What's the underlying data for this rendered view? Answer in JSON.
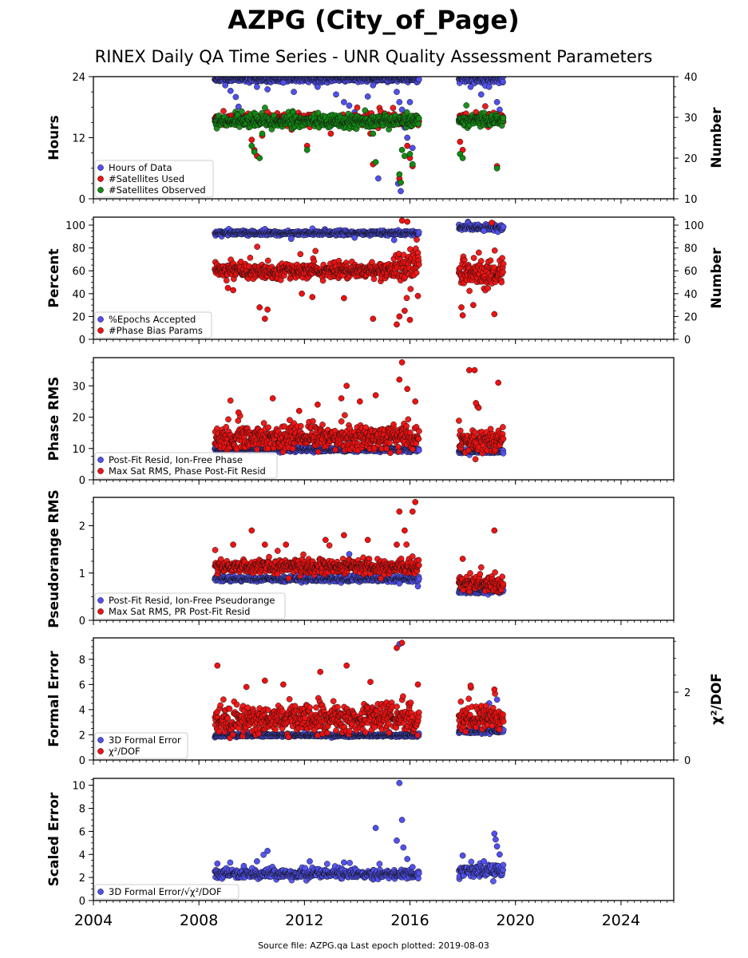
{
  "figure": {
    "title": "AZPG (City_of_Page)",
    "subtitle": "RINEX Daily QA Time Series - UNR Quality Assessment Parameters",
    "footer": "Source file: AZPG.qa Last epoch plotted: 2019-08-03"
  },
  "colors": {
    "blue": "#5050f0",
    "red": "#ee1111",
    "green": "#138a13",
    "axis": "#000000"
  },
  "chart_data": [
    {
      "type": "scatter",
      "name": "hours",
      "ylabel": "Hours",
      "ylabel_right": "Number",
      "ylim": [
        0,
        24
      ],
      "ylim_right": [
        10,
        40
      ],
      "yticks": [
        0,
        12,
        24
      ],
      "yticks_right": [
        10,
        20,
        30,
        40
      ],
      "xlim": [
        2004,
        2026
      ],
      "series": [
        {
          "name": "Hours of Data",
          "color": "#5050f0",
          "axis": "left",
          "segments": [
            [
              2008.6,
              2016.35,
              23.5,
              0.4
            ],
            [
              2017.85,
              2019.55,
              23.5,
              0.6
            ]
          ],
          "outliers": [
            [
              2009.0,
              22.3
            ],
            [
              2009.2,
              21.2
            ],
            [
              2009.4,
              20.0
            ],
            [
              2009.5,
              18.1
            ],
            [
              2010.2,
              22.0
            ],
            [
              2010.6,
              21.5
            ],
            [
              2011.2,
              22.8
            ],
            [
              2011.6,
              21.0
            ],
            [
              2012.5,
              22.0
            ],
            [
              2013.2,
              20.5
            ],
            [
              2013.5,
              19.0
            ],
            [
              2013.7,
              18.3
            ],
            [
              2013.9,
              17.0
            ],
            [
              2014.4,
              20.1
            ],
            [
              2014.6,
              22.3
            ],
            [
              2014.8,
              4.0
            ],
            [
              2015.5,
              21.0
            ],
            [
              2015.6,
              19.0
            ],
            [
              2015.7,
              17.5
            ],
            [
              2015.8,
              14.0
            ],
            [
              2015.9,
              12.0
            ],
            [
              2016.0,
              19.0
            ],
            [
              2016.1,
              10.0
            ],
            [
              2015.65,
              1.5
            ],
            [
              2015.55,
              3.0
            ],
            [
              2018.3,
              22.0
            ],
            [
              2018.7,
              20.5
            ],
            [
              2019.0,
              22.0
            ],
            [
              2019.3,
              19.0
            ],
            [
              2019.4,
              17.5
            ]
          ]
        },
        {
          "name": "#Satellites Used",
          "color": "#ee1111",
          "axis": "right",
          "segments": [
            [
              2008.6,
              2016.35,
              29.3,
              1.0
            ],
            [
              2017.85,
              2019.55,
              29.5,
              1.0
            ]
          ],
          "outliers": [
            [
              2010.0,
              24.5
            ],
            [
              2010.1,
              22.0
            ],
            [
              2010.2,
              20.5
            ],
            [
              2012.1,
              23.0
            ],
            [
              2013.0,
              26.0
            ],
            [
              2014.5,
              26.0
            ],
            [
              2014.6,
              18.5
            ],
            [
              2015.6,
              15.0
            ],
            [
              2015.65,
              14.0
            ],
            [
              2015.9,
              23.0
            ],
            [
              2016.1,
              18.0
            ],
            [
              2016.0,
              20.0
            ],
            [
              2017.9,
              24.0
            ],
            [
              2018.0,
              22.0
            ],
            [
              2019.3,
              18.0
            ],
            [
              2010.4,
              25.5
            ]
          ]
        },
        {
          "name": "#Satellites Observed",
          "color": "#138a13",
          "axis": "right",
          "segments": [
            [
              2008.6,
              2016.35,
              29.0,
              1.1
            ],
            [
              2017.85,
              2019.55,
              29.2,
              1.0
            ]
          ],
          "outliers": [
            [
              2010.0,
              23.0
            ],
            [
              2010.1,
              21.5
            ],
            [
              2010.3,
              20.0
            ],
            [
              2012.1,
              22.0
            ],
            [
              2014.6,
              26.0
            ],
            [
              2014.7,
              19.0
            ],
            [
              2015.6,
              16.0
            ],
            [
              2015.65,
              14.0
            ],
            [
              2015.7,
              22.0
            ],
            [
              2015.8,
              20.5
            ],
            [
              2016.0,
              21.0
            ],
            [
              2016.1,
              18.5
            ],
            [
              2017.9,
              21.0
            ],
            [
              2018.0,
              20.0
            ],
            [
              2019.3,
              17.5
            ],
            [
              2010.4,
              26.0
            ]
          ]
        }
      ]
    },
    {
      "type": "scatter",
      "name": "percent",
      "ylabel": "Percent",
      "ylabel_right": "Number",
      "ylim": [
        0,
        107
      ],
      "ylim_right": [
        0,
        107
      ],
      "yticks": [
        0,
        20,
        40,
        60,
        80,
        100
      ],
      "yticks_right": [
        0,
        20,
        40,
        60,
        80,
        100
      ],
      "xlim": [
        2004,
        2026
      ],
      "series": [
        {
          "name": "%Epochs Accepted",
          "color": "#5050f0",
          "axis": "left",
          "segments": [
            [
              2008.6,
              2016.35,
              93.0,
              1.5
            ],
            [
              2017.85,
              2019.55,
              97.5,
              2.0
            ]
          ],
          "outliers": [
            [
              2011.5,
              88.0
            ],
            [
              2013.9,
              89.0
            ],
            [
              2015.4,
              87.0
            ],
            [
              2018.8,
              95.0
            ]
          ]
        },
        {
          "name": "#Phase Bias Params",
          "color": "#ee1111",
          "axis": "right",
          "segments": [
            [
              2008.6,
              2015.4,
              60.0,
              5.5
            ],
            [
              2015.4,
              2016.35,
              65.0,
              14.0
            ],
            [
              2017.85,
              2019.55,
              58.0,
              9.0
            ]
          ],
          "outliers": [
            [
              2009.1,
              45.0
            ],
            [
              2009.3,
              43.0
            ],
            [
              2010.3,
              28.0
            ],
            [
              2010.5,
              18.0
            ],
            [
              2010.6,
              26.0
            ],
            [
              2011.9,
              40.0
            ],
            [
              2012.3,
              37.0
            ],
            [
              2013.5,
              36.0
            ],
            [
              2014.6,
              18.0
            ],
            [
              2015.5,
              13.0
            ],
            [
              2015.6,
              20.0
            ],
            [
              2015.8,
              25.0
            ],
            [
              2016.0,
              17.0
            ],
            [
              2016.3,
              38.0
            ],
            [
              2017.95,
              28.0
            ],
            [
              2018.0,
              21.0
            ],
            [
              2018.4,
              30.0
            ],
            [
              2019.2,
              22.0
            ],
            [
              2015.7,
              104.0
            ],
            [
              2015.9,
              103.0
            ],
            [
              2019.1,
              102.0
            ]
          ]
        }
      ]
    },
    {
      "type": "scatter",
      "name": "phase-rms",
      "ylabel": "Phase RMS",
      "ylim": [
        0,
        39
      ],
      "yticks": [
        0,
        10,
        20,
        30
      ],
      "xlim": [
        2004,
        2026
      ],
      "series": [
        {
          "name": "Post-Fit Resid, Ion-Free Phase",
          "color": "#5050f0",
          "axis": "left",
          "segments": [
            [
              2008.6,
              2016.35,
              9.6,
              0.5
            ],
            [
              2017.85,
              2019.55,
              9.0,
              0.5
            ]
          ],
          "outliers": []
        },
        {
          "name": "Max Sat RMS, Phase Post-Fit Resid",
          "color": "#ee1111",
          "axis": "left",
          "segments": [
            [
              2008.6,
              2016.35,
              13.5,
              3.0
            ],
            [
              2017.85,
              2019.55,
              12.5,
              2.8
            ]
          ],
          "outliers": [
            [
              2010.8,
              26.0
            ],
            [
              2012.5,
              24.0
            ],
            [
              2013.4,
              26.0
            ],
            [
              2013.6,
              30.0
            ],
            [
              2014.1,
              25.0
            ],
            [
              2014.7,
              27.0
            ],
            [
              2015.6,
              32.0
            ],
            [
              2015.7,
              37.5
            ],
            [
              2015.9,
              29.0
            ],
            [
              2016.2,
              25.0
            ],
            [
              2018.25,
              35.0
            ],
            [
              2018.45,
              35.0
            ],
            [
              2018.5,
              24.5
            ],
            [
              2018.6,
              23.0
            ],
            [
              2019.35,
              31.0
            ],
            [
              2011.8,
              22.0
            ],
            [
              2009.5,
              21.5
            ]
          ]
        }
      ]
    },
    {
      "type": "scatter",
      "name": "pseudorange-rms",
      "ylabel": "Pseudorange RMS",
      "ylim": [
        0,
        2.6
      ],
      "yticks": [
        0,
        1,
        2
      ],
      "xlim": [
        2004,
        2026
      ],
      "series": [
        {
          "name": "Post-Fit Resid, Ion-Free Pseudorange",
          "color": "#5050f0",
          "axis": "left",
          "segments": [
            [
              2008.6,
              2016.35,
              0.87,
              0.04
            ],
            [
              2017.85,
              2019.55,
              0.62,
              0.04
            ]
          ],
          "outliers": [
            [
              2013.7,
              1.4
            ],
            [
              2015.6,
              0.78
            ],
            [
              2016.3,
              0.72
            ]
          ]
        },
        {
          "name": "Max Sat RMS, PR Post-Fit Resid",
          "color": "#ee1111",
          "axis": "left",
          "segments": [
            [
              2008.6,
              2016.35,
              1.13,
              0.12
            ],
            [
              2017.85,
              2019.55,
              0.78,
              0.12
            ]
          ],
          "outliers": [
            [
              2009.3,
              1.6
            ],
            [
              2010.0,
              1.9
            ],
            [
              2010.5,
              1.6
            ],
            [
              2011.3,
              1.6
            ],
            [
              2012.8,
              1.7
            ],
            [
              2013.5,
              1.8
            ],
            [
              2014.4,
              1.7
            ],
            [
              2015.6,
              2.3
            ],
            [
              2015.8,
              1.9
            ],
            [
              2016.2,
              2.5
            ],
            [
              2016.1,
              2.3
            ],
            [
              2018.0,
              1.3
            ],
            [
              2019.2,
              1.9
            ],
            [
              2015.5,
              1.6
            ]
          ]
        }
      ]
    },
    {
      "type": "scatter",
      "name": "formal-error",
      "ylabel": "Formal Error",
      "ylabel_right": "χ²/DOF",
      "ylim": [
        0,
        9.7
      ],
      "ylim_right": [
        0,
        3.6
      ],
      "yticks": [
        0,
        2,
        4,
        6,
        8
      ],
      "yticks_right": [
        0,
        2
      ],
      "xlim": [
        2004,
        2026
      ],
      "series": [
        {
          "name": "3D Formal Error",
          "color": "#5050f0",
          "axis": "left",
          "segments": [
            [
              2008.6,
              2016.35,
              1.95,
              0.08
            ],
            [
              2017.85,
              2019.55,
              2.3,
              0.15
            ]
          ],
          "outliers": [
            [
              2015.6,
              9.2
            ],
            [
              2018.0,
              3.8
            ],
            [
              2019.0,
              4.5
            ],
            [
              2019.3,
              4.8
            ]
          ]
        },
        {
          "name": "χ²/DOF",
          "color": "#ee1111",
          "axis": "left",
          "segments": [
            [
              2008.6,
              2016.35,
              3.3,
              0.9
            ],
            [
              2017.85,
              2019.55,
              3.2,
              0.7
            ]
          ],
          "outliers": [
            [
              2008.7,
              7.5
            ],
            [
              2010.5,
              6.3
            ],
            [
              2011.2,
              6.0
            ],
            [
              2012.6,
              7.0
            ],
            [
              2013.6,
              7.5
            ],
            [
              2014.5,
              6.2
            ],
            [
              2015.5,
              8.9
            ],
            [
              2015.7,
              9.3
            ],
            [
              2016.3,
              6.0
            ],
            [
              2018.3,
              5.9
            ],
            [
              2019.2,
              5.6
            ],
            [
              2009.8,
              5.8
            ]
          ]
        }
      ]
    },
    {
      "type": "scatter",
      "name": "scaled-error",
      "ylabel": "Scaled Error",
      "ylim": [
        0,
        10.6
      ],
      "yticks": [
        0,
        2,
        4,
        6,
        8,
        10
      ],
      "xlim": [
        2004,
        2026
      ],
      "xticks": [
        2004,
        2008,
        2012,
        2016,
        2020,
        2024
      ],
      "series": [
        {
          "name": "3D Formal Error/√χ²/DOF",
          "color": "#5050f0",
          "axis": "left",
          "segments": [
            [
              2008.6,
              2016.35,
              2.3,
              0.3
            ],
            [
              2017.85,
              2019.55,
              2.6,
              0.4
            ]
          ],
          "outliers": [
            [
              2008.7,
              3.2
            ],
            [
              2009.7,
              3.0
            ],
            [
              2010.2,
              3.4
            ],
            [
              2010.6,
              4.3
            ],
            [
              2012.2,
              3.4
            ],
            [
              2013.5,
              3.3
            ],
            [
              2014.7,
              6.3
            ],
            [
              2015.5,
              5.2
            ],
            [
              2015.6,
              10.2
            ],
            [
              2015.7,
              7.0
            ],
            [
              2015.75,
              4.6
            ],
            [
              2015.9,
              3.6
            ],
            [
              2016.1,
              2.9
            ],
            [
              2018.0,
              3.9
            ],
            [
              2018.8,
              3.4
            ],
            [
              2019.2,
              5.8
            ],
            [
              2019.25,
              5.3
            ],
            [
              2019.3,
              4.7
            ],
            [
              2019.4,
              4.0
            ]
          ]
        }
      ]
    }
  ]
}
